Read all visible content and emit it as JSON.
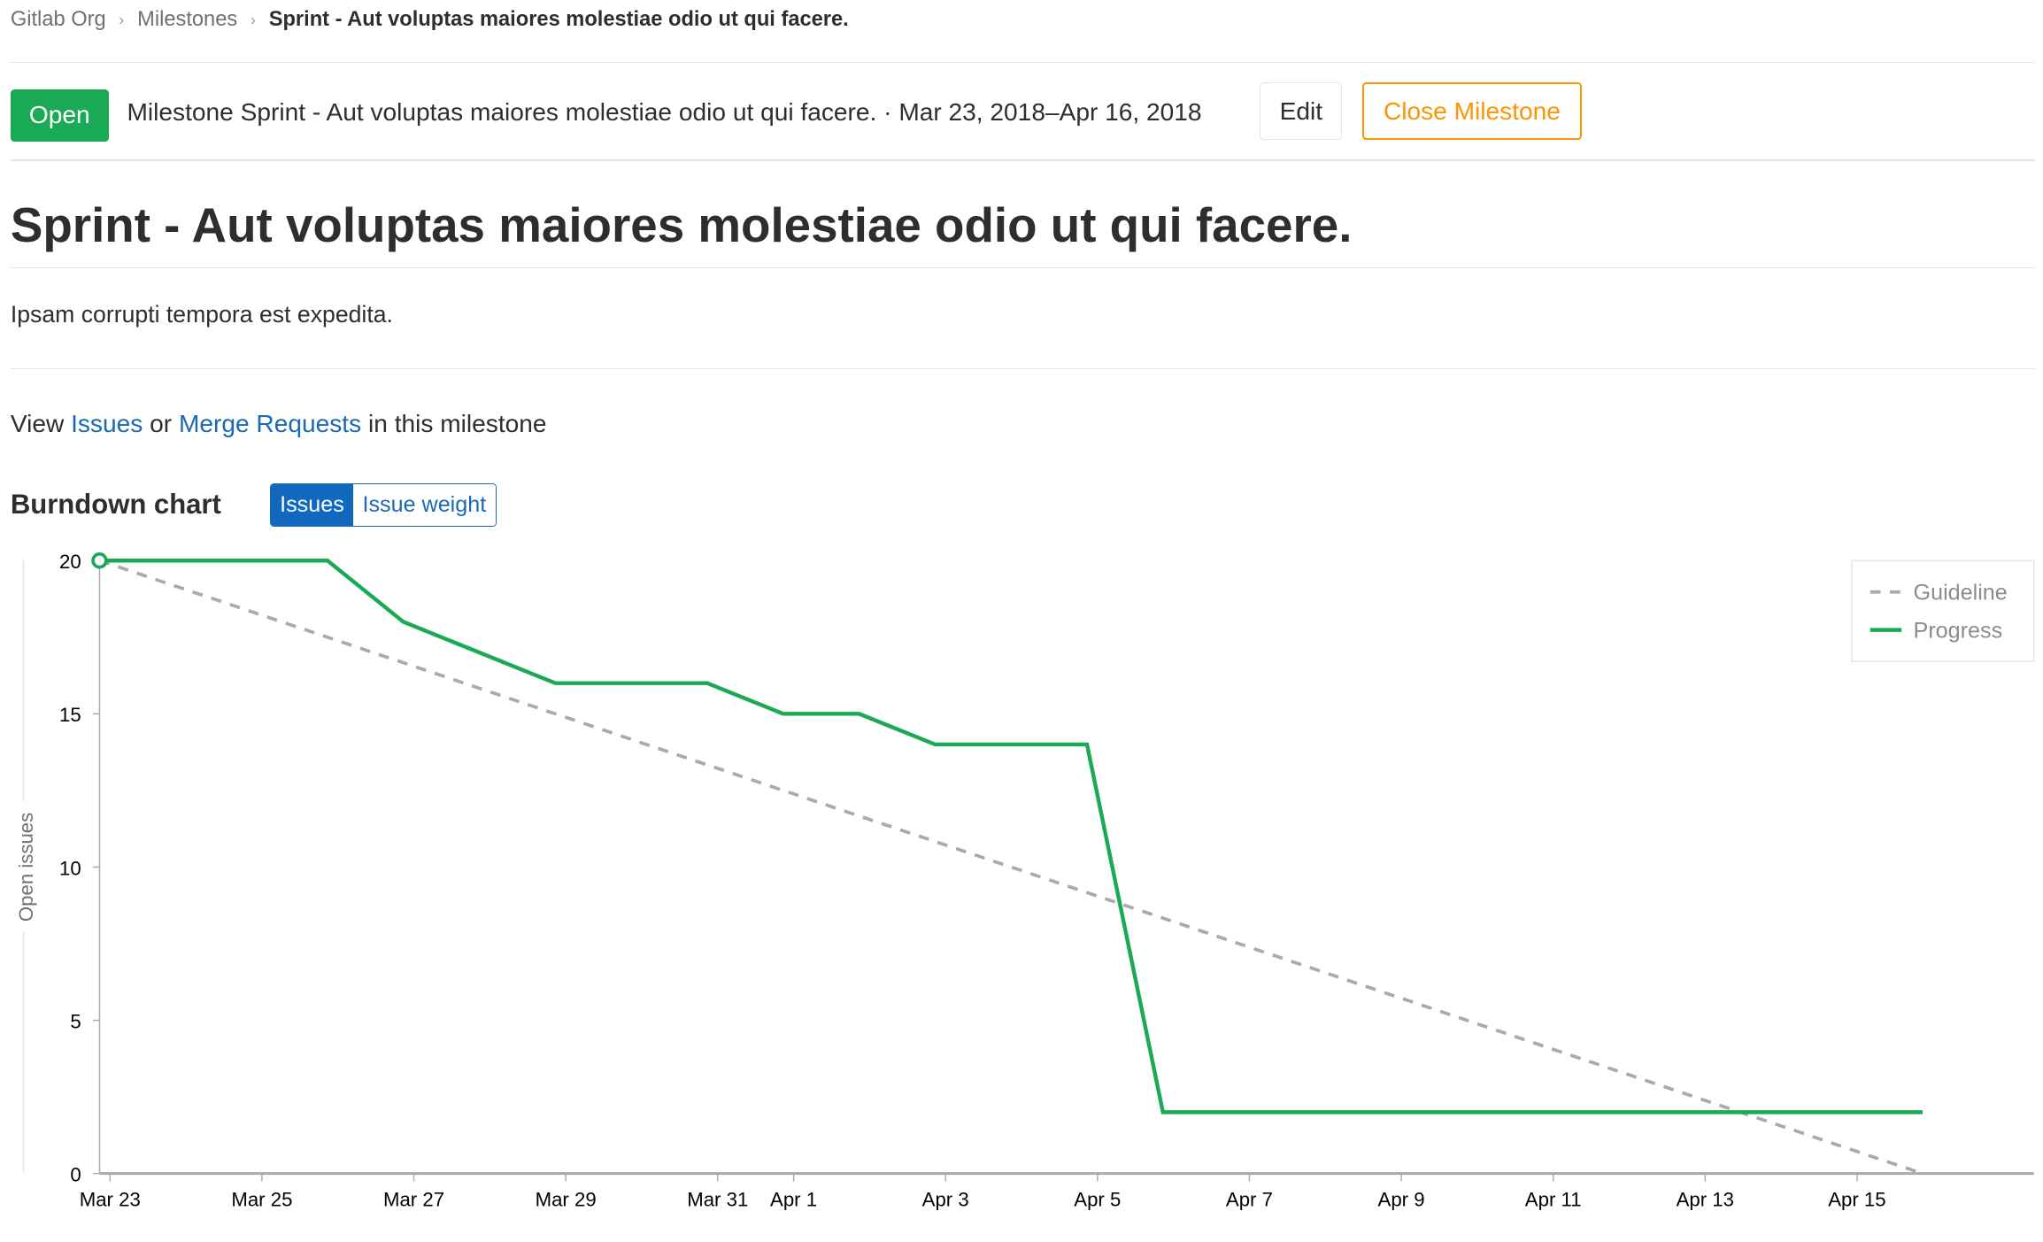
{
  "breadcrumb": {
    "items": [
      "Gitlab Org",
      "Milestones"
    ],
    "current": "Sprint - Aut voluptas maiores molestiae odio ut qui facere."
  },
  "header": {
    "status": "Open",
    "milestone_text": "Milestone Sprint - Aut voluptas maiores molestiae odio ut qui facere. · Mar 23, 2018–Apr 16, 2018",
    "edit_label": "Edit",
    "close_label": "Close Milestone"
  },
  "title": "Sprint - Aut voluptas maiores molestiae odio ut qui facere.",
  "description": "Ipsam corrupti tempora est expedita.",
  "view_line": {
    "prefix": "View",
    "issues": "Issues",
    "or": "or",
    "merge_requests": "Merge Requests",
    "suffix": "in this milestone"
  },
  "burndown": {
    "title": "Burndown chart",
    "toggle": [
      "Issues",
      "Issue weight"
    ],
    "active": "Issues"
  },
  "colors": {
    "status_open": "#1aaa55",
    "close_button": "#fc9403",
    "link": "#1b69b6",
    "progress": "#1aaa55",
    "guideline": "#aaaaaa"
  },
  "chart_data": {
    "type": "line",
    "ylabel": "Open issues",
    "ylim": [
      0,
      20
    ],
    "yticks": [
      0,
      5,
      10,
      15,
      20
    ],
    "xlim": [
      "Mar 23",
      "Apr 16"
    ],
    "xticks": [
      {
        "label": "Mar 23",
        "day": 0
      },
      {
        "label": "Mar 25",
        "day": 2
      },
      {
        "label": "Mar 27",
        "day": 4
      },
      {
        "label": "Mar 29",
        "day": 6
      },
      {
        "label": "Mar 31",
        "day": 8
      },
      {
        "label": "Apr 1",
        "day": 9
      },
      {
        "label": "Apr 3",
        "day": 11
      },
      {
        "label": "Apr 5",
        "day": 13
      },
      {
        "label": "Apr 7",
        "day": 15
      },
      {
        "label": "Apr 9",
        "day": 17
      },
      {
        "label": "Apr 11",
        "day": 19
      },
      {
        "label": "Apr 13",
        "day": 21
      },
      {
        "label": "Apr 15",
        "day": 23
      }
    ],
    "legend_position": "top-right",
    "series": [
      {
        "name": "Guideline",
        "style": "dashed",
        "points": [
          {
            "date": "Mar 23",
            "day": 0,
            "value": 20
          },
          {
            "date": "Apr 16",
            "day": 24,
            "value": 0
          }
        ]
      },
      {
        "name": "Progress",
        "style": "solid",
        "points": [
          {
            "date": "Mar 23",
            "day": 0,
            "value": 20
          },
          {
            "date": "Mar 26",
            "day": 3,
            "value": 20
          },
          {
            "date": "Mar 27",
            "day": 4,
            "value": 18
          },
          {
            "date": "Mar 29",
            "day": 6,
            "value": 16
          },
          {
            "date": "Mar 31",
            "day": 8,
            "value": 16
          },
          {
            "date": "Apr 1",
            "day": 9,
            "value": 15
          },
          {
            "date": "Apr 2",
            "day": 10,
            "value": 15
          },
          {
            "date": "Apr 3",
            "day": 11,
            "value": 14
          },
          {
            "date": "Apr 5",
            "day": 13,
            "value": 14
          },
          {
            "date": "Apr 6",
            "day": 14,
            "value": 2
          },
          {
            "date": "Apr 16",
            "day": 24,
            "value": 2
          }
        ]
      }
    ]
  }
}
